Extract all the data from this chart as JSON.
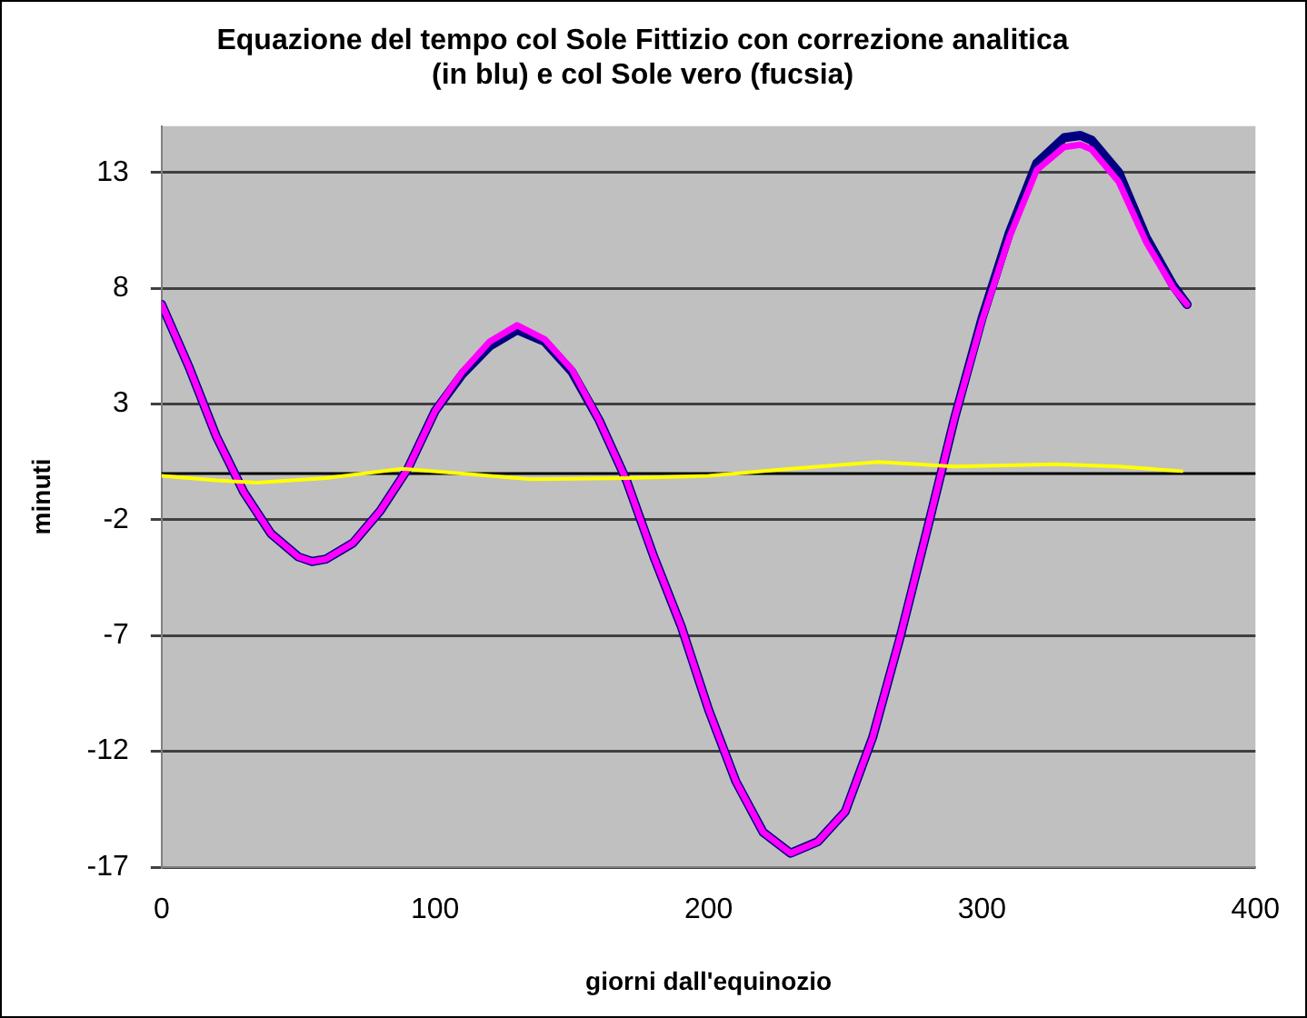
{
  "chart_data": {
    "type": "line",
    "title": "Equazione del tempo col Sole Fittizio con correzione analitica\n(in blu) e col Sole vero (fucsia)",
    "xlabel": "giorni dall'equinozio",
    "ylabel": "minuti",
    "xlim": [
      0,
      400
    ],
    "xticks": [
      0,
      100,
      200,
      300,
      400
    ],
    "ylim": [
      -17,
      15
    ],
    "yticks": [
      -17,
      -12,
      -7,
      -2,
      3,
      8,
      13
    ],
    "grid": "y",
    "legend": false,
    "marker": "none",
    "ref_lines": [
      {
        "axis": "y",
        "value": 0,
        "color": "#000000"
      }
    ],
    "series": [
      {
        "color": "#000080",
        "x": [
          0,
          10,
          20,
          30,
          40,
          50,
          55,
          60,
          70,
          80,
          90,
          100,
          110,
          120,
          130,
          140,
          150,
          160,
          170,
          180,
          190,
          200,
          210,
          220,
          230,
          240,
          250,
          260,
          270,
          280,
          290,
          300,
          310,
          320,
          330,
          336,
          340,
          350,
          360,
          370,
          375
        ],
        "values": [
          7.3,
          4.6,
          1.6,
          -0.8,
          -2.6,
          -3.6,
          -3.8,
          -3.7,
          -3.0,
          -1.6,
          0.2,
          2.7,
          4.3,
          5.5,
          6.2,
          5.7,
          4.4,
          2.3,
          -0.3,
          -3.6,
          -6.6,
          -10.2,
          -13.3,
          -15.5,
          -16.4,
          -15.9,
          -14.6,
          -11.4,
          -7.1,
          -2.4,
          2.4,
          6.7,
          10.4,
          13.4,
          14.5,
          14.6,
          14.4,
          13.0,
          10.2,
          8.1,
          7.3
        ]
      },
      {
        "color": "#ff00ff",
        "x": [
          0,
          10,
          20,
          30,
          40,
          50,
          55,
          60,
          70,
          80,
          90,
          100,
          110,
          120,
          130,
          140,
          150,
          160,
          170,
          180,
          190,
          200,
          210,
          220,
          230,
          240,
          250,
          260,
          270,
          280,
          290,
          300,
          310,
          320,
          330,
          336,
          340,
          350,
          360,
          370,
          375
        ],
        "values": [
          7.3,
          4.6,
          1.6,
          -0.8,
          -2.6,
          -3.6,
          -3.8,
          -3.7,
          -3.0,
          -1.6,
          0.2,
          2.7,
          4.4,
          5.7,
          6.4,
          5.8,
          4.5,
          2.3,
          -0.3,
          -3.6,
          -6.6,
          -10.2,
          -13.3,
          -15.5,
          -16.4,
          -15.9,
          -14.6,
          -11.4,
          -7.1,
          -2.4,
          2.4,
          6.6,
          10.2,
          13.1,
          14.1,
          14.2,
          14.0,
          12.6,
          10.0,
          8.0,
          7.3
        ]
      },
      {
        "color": "#ffff00",
        "x": [
          0,
          20,
          35,
          60,
          88,
          110,
          135,
          170,
          200,
          230,
          262,
          290,
          327,
          350,
          373
        ],
        "values": [
          -0.1,
          -0.3,
          -0.4,
          -0.2,
          0.2,
          0,
          -0.25,
          -0.2,
          -0.1,
          0.2,
          0.5,
          0.3,
          0.4,
          0.3,
          0.1
        ]
      }
    ]
  }
}
